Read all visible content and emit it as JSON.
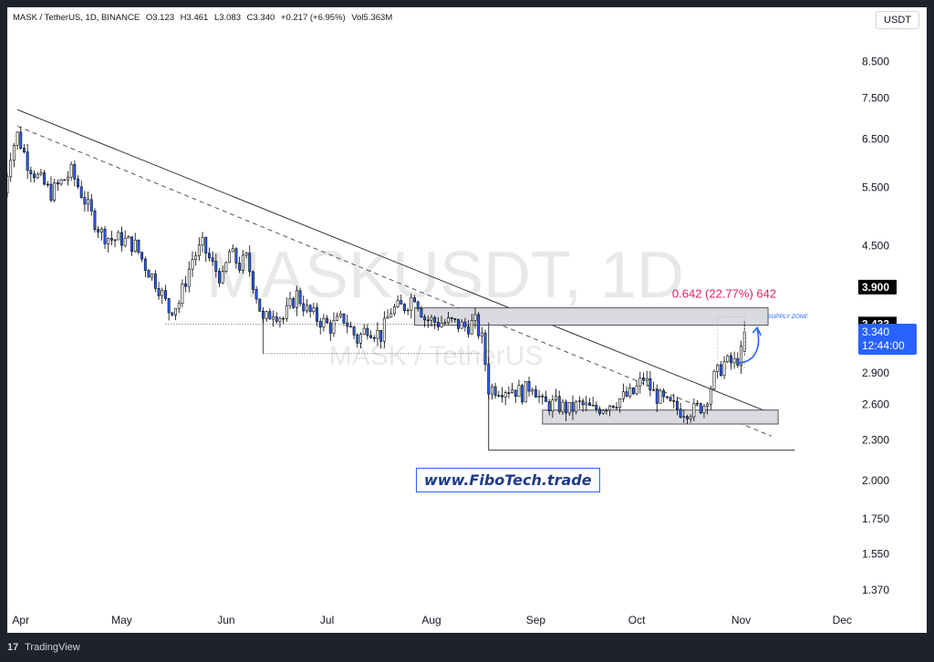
{
  "header": {
    "symbol": "MASK / TetherUS, 1D, BINANCE",
    "open": "O3.123",
    "high": "H3.461",
    "low": "L3.083",
    "close": "C3.340",
    "change": "+0.217 (+6.95%)",
    "volume": "Vol5.363M"
  },
  "currency_button": "USDT",
  "watermark": {
    "title": "MASKUSDT, 1D",
    "subtitle": "MASK / TetherUS"
  },
  "website": "www.FiboTech.trade",
  "footer": {
    "brand": "TradingView",
    "logo_glyph": "17"
  },
  "annotations": {
    "measure_label": "0.642 (22.77%) 642",
    "supply_zone": "SUPPLY ZONE"
  },
  "colors": {
    "up_candle": "#ffffff",
    "down_candle": "#2962ff",
    "candle_border": "#000000",
    "measure_text": "#e91e63",
    "price_tag_current": "#2962ff",
    "price_tag_level": "#000000",
    "zone_fill": "#d9dbe0",
    "arrow": "#2962ff"
  },
  "chart_data": {
    "type": "candlestick",
    "y_scale": "log",
    "ylim": [
      1.25,
      10
    ],
    "y_ticks": [
      "8.500",
      "7.500",
      "6.500",
      "5.500",
      "4.500",
      "3.900",
      "3.433",
      "2.900",
      "2.600",
      "2.300",
      "2.000",
      "1.750",
      "1.550",
      "1.370"
    ],
    "y_tick_values": [
      8.5,
      7.5,
      6.5,
      5.5,
      4.5,
      3.9,
      3.433,
      2.9,
      2.6,
      2.3,
      2.0,
      1.75,
      1.55,
      1.37
    ],
    "highlighted_levels": [
      3.9,
      3.433
    ],
    "current_price": {
      "value": 3.34,
      "label": "3.340",
      "countdown": "12:44:00"
    },
    "x_range": [
      "2023-03-28",
      "2023-12-05"
    ],
    "x_ticks": [
      {
        "label": "Apr",
        "date": "2023-04-01"
      },
      {
        "label": "May",
        "date": "2023-05-01"
      },
      {
        "label": "Jun",
        "date": "2023-06-01"
      },
      {
        "label": "Jul",
        "date": "2023-07-01"
      },
      {
        "label": "Aug",
        "date": "2023-08-01"
      },
      {
        "label": "Sep",
        "date": "2023-09-01"
      },
      {
        "label": "Oct",
        "date": "2023-10-01"
      },
      {
        "label": "Nov",
        "date": "2023-11-01"
      },
      {
        "label": "Dec",
        "date": "2023-12-01"
      }
    ],
    "close_path": [
      [
        "2023-03-27",
        5.4
      ],
      [
        "2023-03-29",
        6.2
      ],
      [
        "2023-03-31",
        6.6
      ],
      [
        "2023-04-03",
        6.0
      ],
      [
        "2023-04-06",
        5.7
      ],
      [
        "2023-04-10",
        5.4
      ],
      [
        "2023-04-13",
        5.6
      ],
      [
        "2023-04-16",
        5.8
      ],
      [
        "2023-04-19",
        5.4
      ],
      [
        "2023-04-22",
        5.0
      ],
      [
        "2023-04-25",
        4.7
      ],
      [
        "2023-04-28",
        4.6
      ],
      [
        "2023-05-01",
        4.6
      ],
      [
        "2023-05-05",
        4.5
      ],
      [
        "2023-05-08",
        4.2
      ],
      [
        "2023-05-12",
        3.9
      ],
      [
        "2023-05-15",
        3.6
      ],
      [
        "2023-05-18",
        3.7
      ],
      [
        "2023-05-22",
        4.3
      ],
      [
        "2023-05-25",
        4.5
      ],
      [
        "2023-05-28",
        4.2
      ],
      [
        "2023-05-31",
        4.0
      ],
      [
        "2023-06-02",
        4.4
      ],
      [
        "2023-06-05",
        4.2
      ],
      [
        "2023-06-07",
        4.3
      ],
      [
        "2023-06-10",
        3.8
      ],
      [
        "2023-06-12",
        3.45
      ],
      [
        "2023-06-15",
        3.6
      ],
      [
        "2023-06-18",
        3.5
      ],
      [
        "2023-06-22",
        3.8
      ],
      [
        "2023-06-25",
        3.6
      ],
      [
        "2023-06-28",
        3.5
      ],
      [
        "2023-07-02",
        3.4
      ],
      [
        "2023-07-06",
        3.5
      ],
      [
        "2023-07-10",
        3.25
      ],
      [
        "2023-07-13",
        3.4
      ],
      [
        "2023-07-17",
        3.3
      ],
      [
        "2023-07-20",
        3.6
      ],
      [
        "2023-07-24",
        3.65
      ],
      [
        "2023-07-27",
        3.8
      ],
      [
        "2023-07-30",
        3.5
      ],
      [
        "2023-08-03",
        3.45
      ],
      [
        "2023-08-07",
        3.45
      ],
      [
        "2023-08-11",
        3.4
      ],
      [
        "2023-08-14",
        3.45
      ],
      [
        "2023-08-16",
        3.25
      ],
      [
        "2023-08-18",
        2.75
      ],
      [
        "2023-08-21",
        2.75
      ],
      [
        "2023-08-25",
        2.75
      ],
      [
        "2023-08-28",
        2.7
      ],
      [
        "2023-08-31",
        2.8
      ],
      [
        "2023-09-03",
        2.6
      ],
      [
        "2023-09-07",
        2.6
      ],
      [
        "2023-09-11",
        2.55
      ],
      [
        "2023-09-14",
        2.6
      ],
      [
        "2023-09-18",
        2.55
      ],
      [
        "2023-09-22",
        2.6
      ],
      [
        "2023-09-26",
        2.65
      ],
      [
        "2023-09-30",
        2.7
      ],
      [
        "2023-10-03",
        2.85
      ],
      [
        "2023-10-06",
        2.7
      ],
      [
        "2023-10-10",
        2.6
      ],
      [
        "2023-10-14",
        2.55
      ],
      [
        "2023-10-18",
        2.55
      ],
      [
        "2023-10-21",
        2.6
      ],
      [
        "2023-10-24",
        2.85
      ],
      [
        "2023-10-27",
        3.0
      ],
      [
        "2023-10-30",
        3.0
      ],
      [
        "2023-11-01",
        3.1
      ],
      [
        "2023-11-02",
        3.34
      ]
    ],
    "latest_candle": {
      "open": 3.123,
      "high": 3.461,
      "low": 3.083,
      "close": 3.34
    }
  }
}
